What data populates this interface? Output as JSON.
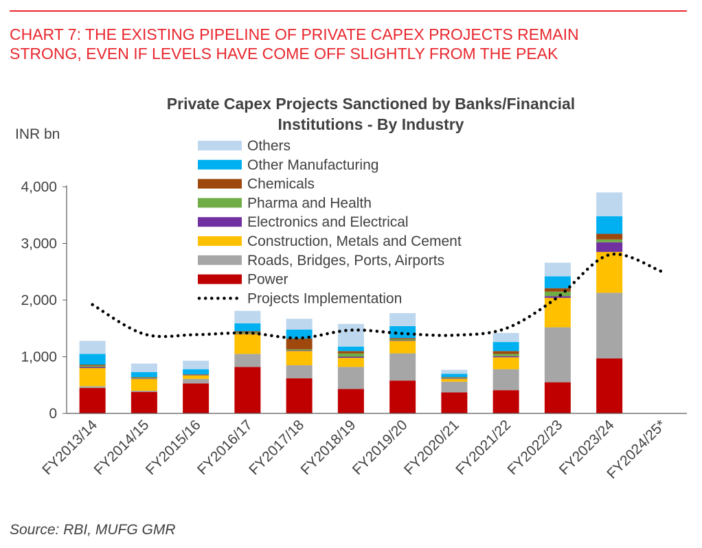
{
  "header": {
    "line1": "CHART 7: THE EXISTING PIPELINE OF PRIVATE CAPEX PROJECTS REMAIN",
    "line2": "STRONG, EVEN IF LEVELS HAVE COME OFF SLIGHTLY FROM THE PEAK"
  },
  "footer": {
    "source": "Source: RBI, MUFG GMR"
  },
  "chart_data": {
    "type": "bar",
    "stacked": true,
    "title_line1": "Private Capex Projects Sanctioned by Banks/Financial",
    "title_line2": "Institutions - By Industry",
    "ylabel": "INR bn",
    "xlabel": "",
    "ylim": [
      0,
      4000
    ],
    "yticks": [
      0,
      1000,
      2000,
      3000,
      4000
    ],
    "ytick_labels": [
      "0",
      "1,000",
      "2,000",
      "3,000",
      "4,000"
    ],
    "grid": false,
    "legend_position": "top-center",
    "categories": [
      "FY2013/14",
      "FY2014/15",
      "FY2015/16",
      "FY2016/17",
      "FY2017/18",
      "FY2018/19",
      "FY2019/20",
      "FY2020/21",
      "FY2021/22",
      "FY2022/23",
      "FY2023/24",
      "FY2024/25*"
    ],
    "series": [
      {
        "name": "Power",
        "color": "#c00000",
        "values": [
          450,
          380,
          530,
          820,
          620,
          430,
          580,
          370,
          410,
          550,
          970,
          null
        ]
      },
      {
        "name": "Roads, Bridges, Ports, Airports",
        "color": "#a6a6a6",
        "values": [
          30,
          20,
          80,
          230,
          230,
          390,
          480,
          190,
          370,
          970,
          1160,
          null
        ]
      },
      {
        "name": "Construction, Metals and Cement",
        "color": "#ffc000",
        "values": [
          320,
          210,
          60,
          350,
          250,
          160,
          220,
          50,
          210,
          520,
          720,
          null
        ]
      },
      {
        "name": "Electronics and Electrical",
        "color": "#7030a0",
        "values": [
          20,
          10,
          5,
          10,
          10,
          20,
          10,
          10,
          20,
          30,
          170,
          null
        ]
      },
      {
        "name": "Pharma and Health",
        "color": "#70ad47",
        "values": [
          20,
          10,
          5,
          20,
          20,
          60,
          20,
          10,
          40,
          80,
          50,
          null
        ]
      },
      {
        "name": "Chemicals",
        "color": "#9e480e",
        "values": [
          20,
          10,
          10,
          20,
          190,
          40,
          20,
          10,
          50,
          60,
          100,
          null
        ]
      },
      {
        "name": "Other Manufacturing",
        "color": "#00b0f0",
        "values": [
          190,
          90,
          90,
          140,
          160,
          80,
          210,
          60,
          160,
          210,
          310,
          null
        ]
      },
      {
        "name": "Others",
        "color": "#bdd7ee",
        "values": [
          230,
          150,
          150,
          220,
          190,
          400,
          230,
          70,
          160,
          240,
          420,
          null
        ]
      }
    ],
    "line_series": {
      "name": "Projects Implementation",
      "color": "#000000",
      "style": "dotted",
      "values": [
        1920,
        1400,
        1390,
        1420,
        1330,
        1470,
        1410,
        1380,
        1500,
        2050,
        2800,
        2510
      ]
    }
  }
}
